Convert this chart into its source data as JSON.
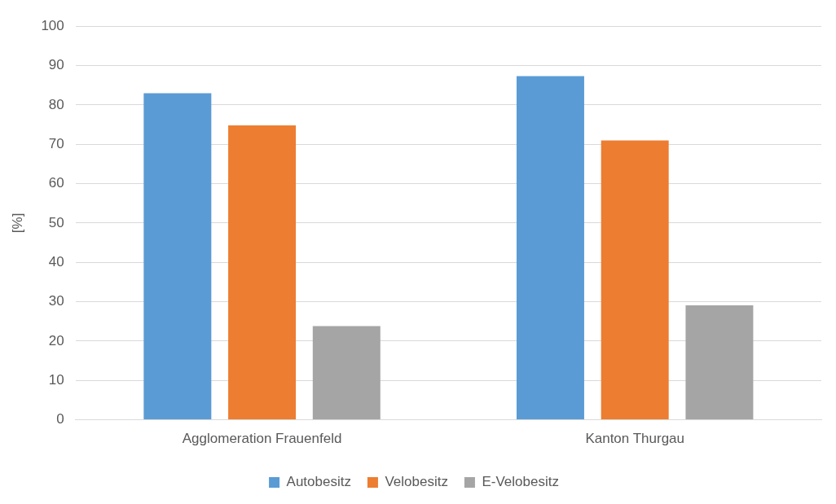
{
  "chart_data": {
    "type": "bar",
    "ylabel": "[%]",
    "categories": [
      "Agglomeration Frauenfeld",
      "Kanton Thurgau"
    ],
    "series": [
      {
        "name": "Autobesitz",
        "color": "#5b9bd5",
        "values": [
          83,
          87.3
        ]
      },
      {
        "name": "Velobesitz",
        "color": "#ed7d31",
        "values": [
          74.8,
          71
        ]
      },
      {
        "name": "E-Velobesitz",
        "color": "#a5a5a5",
        "values": [
          23.8,
          29.1
        ]
      }
    ],
    "ylim": [
      0,
      100
    ],
    "yticks": [
      0,
      10,
      20,
      30,
      40,
      50,
      60,
      70,
      80,
      90,
      100
    ],
    "grid": "y",
    "legend": "bottom"
  }
}
